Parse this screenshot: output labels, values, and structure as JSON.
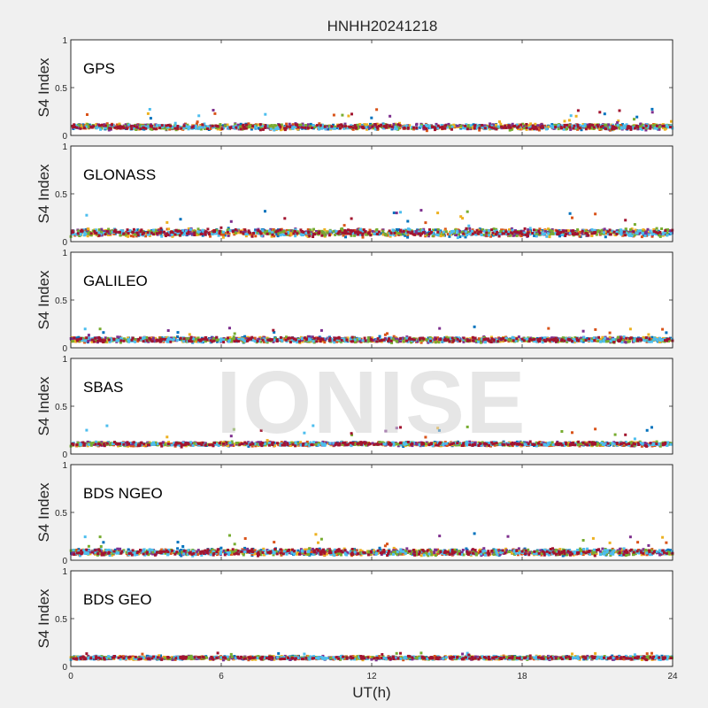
{
  "chart_data": {
    "type": "scatter",
    "title": "HNHH20241218",
    "xlabel": "UT(h)",
    "xlim": [
      0,
      24
    ],
    "xticks": [
      "0",
      "6",
      "12",
      "18",
      "24"
    ],
    "ylabel": "S4 Index",
    "ylim": [
      0,
      1
    ],
    "yticks": [
      "0",
      "0.5",
      "1"
    ],
    "watermark": "IONISE",
    "series_colors": [
      "#0072bd",
      "#d95319",
      "#edb120",
      "#7e2f8e",
      "#77ac30",
      "#4dbeee",
      "#a2142f"
    ],
    "panels": [
      {
        "label": "GPS",
        "typical_s4": [
          0.04,
          0.14
        ],
        "peak_s4": 0.28
      },
      {
        "label": "GLONASS",
        "typical_s4": [
          0.03,
          0.16
        ],
        "peak_s4": 0.33
      },
      {
        "label": "GALILEO",
        "typical_s4": [
          0.04,
          0.13
        ],
        "peak_s4": 0.22
      },
      {
        "label": "SBAS",
        "typical_s4": [
          0.07,
          0.14
        ],
        "peak_s4": 0.3
      },
      {
        "label": "BDS NGEO",
        "typical_s4": [
          0.03,
          0.14
        ],
        "peak_s4": 0.28
      },
      {
        "label": "BDS GEO",
        "typical_s4": [
          0.06,
          0.12
        ],
        "peak_s4": 0.14
      }
    ]
  }
}
